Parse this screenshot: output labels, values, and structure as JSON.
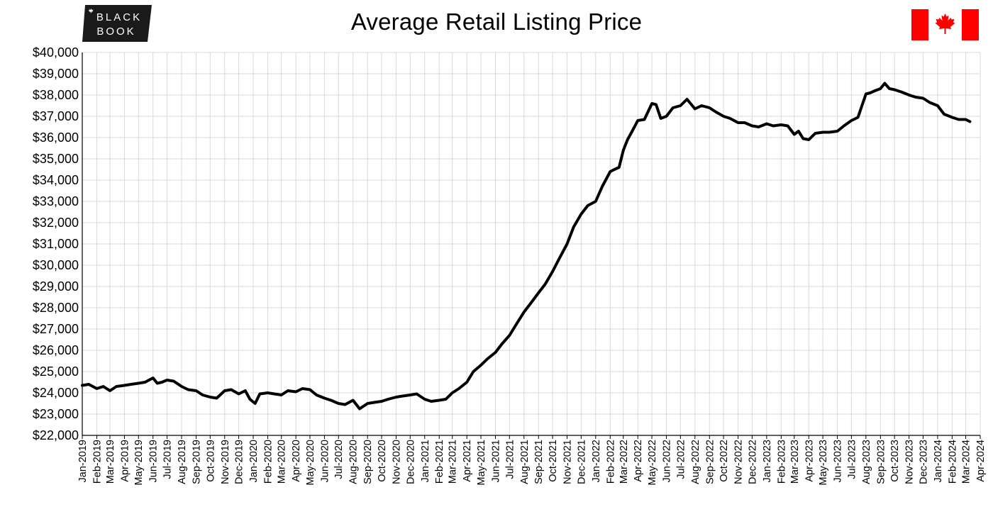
{
  "header": {
    "title": "Average Retail Listing Price",
    "logo_lines": [
      "BLACK",
      "BOOK"
    ],
    "flag": "canada-flag"
  },
  "colors": {
    "line": "#000000",
    "grid": "#d9d9d9",
    "flag_red": "#ff0000",
    "logo_bg": "#1a1a1a"
  },
  "chart_data": {
    "type": "line",
    "title": "Average Retail Listing Price",
    "xlabel": "",
    "ylabel": "",
    "grid": true,
    "legend": "none",
    "x_range": [
      "2019-01-01",
      "2024-04-01"
    ],
    "ylim": [
      22000,
      40000
    ],
    "y_tick_labels": [
      "$22,000",
      "$23,000",
      "$24,000",
      "$25,000",
      "$26,000",
      "$27,000",
      "$28,000",
      "$29,000",
      "$30,000",
      "$31,000",
      "$32,000",
      "$33,000",
      "$34,000",
      "$35,000",
      "$36,000",
      "$37,000",
      "$38,000",
      "$39,000",
      "$40,000"
    ],
    "x_tick_labels": [
      "Jan-2019",
      "Feb-2019",
      "Mar-2019",
      "Apr-2019",
      "May-2019",
      "Jun-2019",
      "Jul-2019",
      "Aug-2019",
      "Sep-2019",
      "Oct-2019",
      "Nov-2019",
      "Dec-2019",
      "Jan-2020",
      "Feb-2020",
      "Mar-2020",
      "Apr-2020",
      "May-2020",
      "Jun-2020",
      "Jul-2020",
      "Aug-2020",
      "Sep-2020",
      "Oct-2020",
      "Nov-2020",
      "Dec-2020",
      "Jan-2021",
      "Feb-2021",
      "Mar-2021",
      "Apr-2021",
      "May-2021",
      "Jun-2021",
      "Jul-2021",
      "Aug-2021",
      "Sep-2021",
      "Oct-2021",
      "Nov-2021",
      "Dec-2021",
      "Jan-2022",
      "Feb-2022",
      "Mar-2022",
      "Apr-2022",
      "May-2022",
      "Jun-2022",
      "Jul-2022",
      "Aug-2022",
      "Sep-2022",
      "Oct-2022",
      "Nov-2022",
      "Dec-2022",
      "Jan-2023",
      "Feb-2023",
      "Mar-2023",
      "Apr-2023",
      "May-2023",
      "Jun-2023",
      "Jul-2023",
      "Aug-2023",
      "Sep-2023",
      "Oct-2023",
      "Nov-2023",
      "Dec-2023",
      "Jan-2024",
      "Feb-2024",
      "Mar-2024",
      "Apr-2024"
    ],
    "series": [
      {
        "x": [
          "2019-01-01",
          "2019-01-15",
          "2019-02-01",
          "2019-02-15",
          "2019-03-01",
          "2019-03-15",
          "2019-04-01",
          "2019-04-15",
          "2019-05-01",
          "2019-05-15",
          "2019-06-01",
          "2019-06-10",
          "2019-06-20",
          "2019-07-01",
          "2019-07-15",
          "2019-08-01",
          "2019-08-15",
          "2019-09-01",
          "2019-09-15",
          "2019-10-01",
          "2019-10-15",
          "2019-11-01",
          "2019-11-15",
          "2019-12-01",
          "2019-12-15",
          "2019-12-25",
          "2020-01-05",
          "2020-01-15",
          "2020-02-01",
          "2020-02-15",
          "2020-03-01",
          "2020-03-15",
          "2020-04-01",
          "2020-04-15",
          "2020-05-01",
          "2020-05-15",
          "2020-06-01",
          "2020-06-15",
          "2020-07-01",
          "2020-07-15",
          "2020-08-01",
          "2020-08-15",
          "2020-09-01",
          "2020-09-15",
          "2020-10-01",
          "2020-10-15",
          "2020-11-01",
          "2020-11-15",
          "2020-12-01",
          "2020-12-15",
          "2021-01-01",
          "2021-01-15",
          "2021-02-01",
          "2021-02-15",
          "2021-03-01",
          "2021-03-15",
          "2021-04-01",
          "2021-04-15",
          "2021-05-01",
          "2021-05-15",
          "2021-06-01",
          "2021-06-15",
          "2021-07-01",
          "2021-07-15",
          "2021-08-01",
          "2021-08-15",
          "2021-09-01",
          "2021-09-15",
          "2021-10-01",
          "2021-10-15",
          "2021-11-01",
          "2021-11-15",
          "2021-12-01",
          "2021-12-15",
          "2022-01-01",
          "2022-01-15",
          "2022-02-01",
          "2022-02-10",
          "2022-02-20",
          "2022-03-01",
          "2022-03-10",
          "2022-03-20",
          "2022-04-01",
          "2022-04-15",
          "2022-05-01",
          "2022-05-10",
          "2022-05-20",
          "2022-06-01",
          "2022-06-15",
          "2022-07-01",
          "2022-07-15",
          "2022-08-01",
          "2022-08-15",
          "2022-09-01",
          "2022-09-15",
          "2022-10-01",
          "2022-10-15",
          "2022-11-01",
          "2022-11-15",
          "2022-12-01",
          "2022-12-15",
          "2023-01-01",
          "2023-01-15",
          "2023-02-01",
          "2023-02-15",
          "2023-03-01",
          "2023-03-10",
          "2023-03-20",
          "2023-04-01",
          "2023-04-15",
          "2023-05-01",
          "2023-05-15",
          "2023-06-01",
          "2023-06-15",
          "2023-07-01",
          "2023-07-15",
          "2023-08-01",
          "2023-08-10",
          "2023-08-20",
          "2023-09-01",
          "2023-09-10",
          "2023-09-20",
          "2023-10-01",
          "2023-10-15",
          "2023-11-01",
          "2023-11-15",
          "2023-12-01",
          "2023-12-15",
          "2024-01-01",
          "2024-01-15",
          "2024-02-01",
          "2024-02-15",
          "2024-03-01",
          "2024-03-10"
        ],
        "values": [
          24350,
          24400,
          24200,
          24300,
          24100,
          24300,
          24350,
          24400,
          24450,
          24500,
          24700,
          24450,
          24500,
          24600,
          24550,
          24300,
          24150,
          24100,
          23900,
          23800,
          23750,
          24100,
          24150,
          23950,
          24100,
          23700,
          23500,
          23950,
          24000,
          23950,
          23900,
          24100,
          24050,
          24200,
          24150,
          23900,
          23750,
          23650,
          23500,
          23450,
          23650,
          23250,
          23500,
          23550,
          23600,
          23700,
          23800,
          23850,
          23900,
          23950,
          23700,
          23600,
          23650,
          23700,
          24000,
          24200,
          24500,
          25000,
          25300,
          25600,
          25900,
          26300,
          26700,
          27200,
          27800,
          28200,
          28700,
          29100,
          29700,
          30300,
          31000,
          31800,
          32400,
          32800,
          33000,
          33700,
          34400,
          34500,
          34600,
          35400,
          35900,
          36300,
          36800,
          36850,
          37600,
          37550,
          36900,
          37000,
          37400,
          37500,
          37800,
          37350,
          37500,
          37400,
          37200,
          37000,
          36900,
          36700,
          36700,
          36550,
          36500,
          36650,
          36550,
          36600,
          36550,
          36150,
          36300,
          35950,
          35900,
          36200,
          36250,
          36250,
          36300,
          36550,
          36800,
          36950,
          38050,
          38100,
          38200,
          38300,
          38550,
          38300,
          38250,
          38150,
          38000,
          37900,
          37850,
          37650,
          37500,
          37100,
          36950,
          36850,
          36850,
          36750
        ]
      }
    ]
  }
}
